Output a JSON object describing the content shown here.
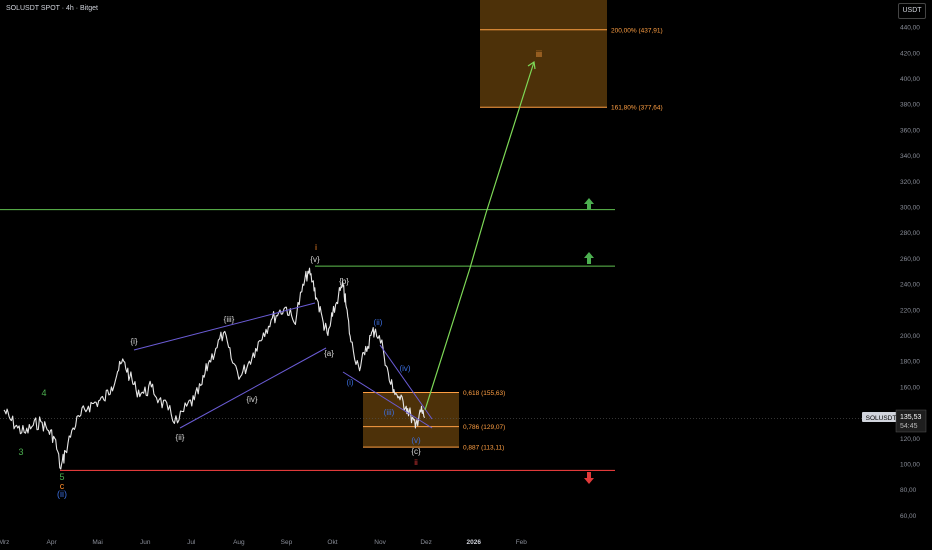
{
  "header": {
    "title": "SOLUSDT SPOT · 4h · Bitget",
    "currency": "USDT"
  },
  "price_tag": {
    "symbol": "SOLUSDT",
    "price": "135,53",
    "timer": "54:45"
  },
  "colors": {
    "background": "#000000",
    "candle": "#e6e6e6",
    "axis_text": "#8a8e99",
    "green_line": "#5fbf4f",
    "red_line": "#e03a3a",
    "fib": "#ff9f43",
    "fib_zone": "#5a3a0a",
    "channel": "#6b5cd6",
    "target_arrow": "#7ed957",
    "wave_white": "#d9d9d9",
    "wave_blue": "#3c6fe0",
    "wave_orange": "#ff8c2a",
    "wave_green": "#4caf50"
  },
  "chart_data": {
    "type": "line",
    "title": "SOLUSDT SPOT · 4h · Bitget",
    "xlabel": "",
    "ylabel": "",
    "x_ticks": [
      "Mrz",
      "Apr",
      "Mai",
      "Jun",
      "Jul",
      "Aug",
      "Sep",
      "Okt",
      "Nov",
      "Dez",
      "2026",
      "Feb"
    ],
    "y_ticks": [
      "60,00",
      "80,00",
      "100,00",
      "120,00",
      "140,00",
      "160,00",
      "180,00",
      "200,00",
      "220,00",
      "240,00",
      "260,00",
      "280,00",
      "300,00",
      "320,00",
      "340,00",
      "360,00",
      "380,00",
      "400,00",
      "420,00",
      "440,00"
    ],
    "ylim": [
      52,
      470
    ],
    "grid": false,
    "series": [
      {
        "x": [
          "2025-03-01",
          "2025-03-05",
          "2025-03-10",
          "2025-03-15",
          "2025-03-20",
          "2025-03-25",
          "2025-03-30",
          "2025-04-03",
          "2025-04-07",
          "2025-04-10",
          "2025-04-15",
          "2025-04-20",
          "2025-04-25",
          "2025-04-30",
          "2025-05-05",
          "2025-05-10",
          "2025-05-14",
          "2025-05-18",
          "2025-05-22",
          "2025-05-26",
          "2025-05-31",
          "2025-06-05",
          "2025-06-10",
          "2025-06-16",
          "2025-06-22",
          "2025-06-28",
          "2025-07-03",
          "2025-07-08",
          "2025-07-12",
          "2025-07-17",
          "2025-07-22",
          "2025-07-27",
          "2025-08-02",
          "2025-08-07",
          "2025-08-12",
          "2025-08-17",
          "2025-08-22",
          "2025-08-27",
          "2025-09-01",
          "2025-09-06",
          "2025-09-11",
          "2025-09-15",
          "2025-09-18",
          "2025-09-21",
          "2025-09-25",
          "2025-09-28",
          "2025-10-01",
          "2025-10-05",
          "2025-10-08",
          "2025-10-10",
          "2025-10-13",
          "2025-10-18",
          "2025-10-22",
          "2025-10-26",
          "2025-10-29",
          "2025-11-03",
          "2025-11-07",
          "2025-11-10",
          "2025-11-14",
          "2025-11-18",
          "2025-11-21",
          "2025-11-24",
          "2025-11-27",
          "2025-11-30"
        ],
        "values": [
          142,
          135,
          128,
          124,
          130,
          133,
          126,
          120,
          96,
          110,
          128,
          138,
          145,
          148,
          150,
          160,
          172,
          180,
          168,
          158,
          155,
          160,
          150,
          142,
          132,
          145,
          150,
          162,
          178,
          190,
          202,
          182,
          168,
          178,
          190,
          202,
          212,
          218,
          222,
          210,
          234,
          250,
          242,
          228,
          210,
          200,
          215,
          232,
          238,
          222,
          195,
          176,
          185,
          200,
          205,
          190,
          165,
          158,
          150,
          145,
          138,
          128,
          142,
          136
        ]
      }
    ],
    "horizontal_levels": [
      {
        "value": 298,
        "role": "target-line-upper"
      },
      {
        "value": 254,
        "role": "target-line-lower"
      },
      {
        "value": 95,
        "role": "invalidation-line"
      }
    ],
    "fib_zones": [
      {
        "labels": [
          "0,618 (155,63)",
          "0,786 (129,07)",
          "0,887 (113,11)"
        ],
        "levels": [
          155.63,
          129.07,
          113.11
        ]
      },
      {
        "labels": [
          "200,00% (437,91)",
          "161,80% (377,64)"
        ],
        "levels": [
          437.91,
          377.64
        ]
      }
    ],
    "wave_labels": [
      "3",
      "4",
      "5",
      "c",
      "(ii)",
      "{i}",
      "{ii}",
      "{iii}",
      "{iv}",
      "{v}",
      "i",
      "{a}",
      "{b}",
      "(i)",
      "(ii)",
      "(iii)",
      "(iv)",
      "(v)",
      "{c}",
      "ii",
      "iii"
    ],
    "current_price": 135.53
  }
}
